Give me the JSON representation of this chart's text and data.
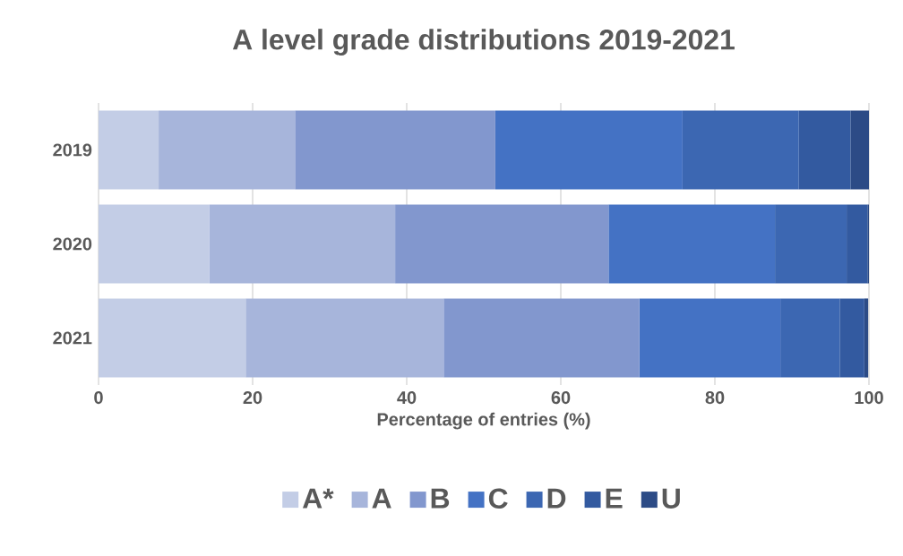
{
  "chart_data": {
    "type": "bar",
    "orientation": "horizontal",
    "stacked": true,
    "title": "A level grade distributions 2019-2021",
    "xlabel": "Percentage of entries (%)",
    "categories": [
      "2019",
      "2020",
      "2021"
    ],
    "series": [
      {
        "name": "A*",
        "color": "#c3cde6",
        "values": [
          7.8,
          14.4,
          19.1
        ]
      },
      {
        "name": "A",
        "color": "#a7b5db",
        "values": [
          17.7,
          24.1,
          25.7
        ]
      },
      {
        "name": "B",
        "color": "#8297ce",
        "values": [
          26.0,
          27.7,
          25.4
        ]
      },
      {
        "name": "C",
        "color": "#4472c4",
        "values": [
          24.3,
          21.6,
          18.3
        ]
      },
      {
        "name": "D",
        "color": "#3c67b2",
        "values": [
          15.1,
          9.3,
          7.7
        ]
      },
      {
        "name": "E",
        "color": "#335aa0",
        "values": [
          6.7,
          2.7,
          3.2
        ]
      },
      {
        "name": "U",
        "color": "#2c4b86",
        "values": [
          2.4,
          0.2,
          0.5
        ]
      }
    ],
    "xlim": [
      0,
      100
    ],
    "xticks": [
      0,
      20,
      40,
      60,
      80,
      100
    ],
    "grid": "x",
    "legend": "bottom"
  }
}
